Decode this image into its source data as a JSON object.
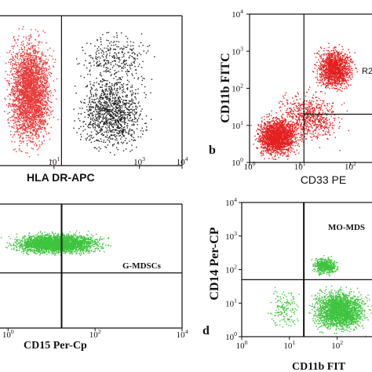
{
  "chart_data": [
    {
      "type": "scatter",
      "panel_letter": "",
      "xlabel": "HLA DR-APC",
      "ylabel": "",
      "x_scale": "log",
      "xlim": [
        0.5,
        10000
      ],
      "ylim": [
        0.5,
        10000
      ],
      "grid": false,
      "x_ticks": [
        {
          "value": 10,
          "base": "10",
          "exp": "1"
        },
        {
          "value": 1000,
          "base": "10",
          "exp": "3"
        },
        {
          "value": 10000,
          "base": "10",
          "exp": "4"
        }
      ],
      "y_ticks": [],
      "gate_lines": {
        "x": 15,
        "y": null
      },
      "gate_label": "",
      "series": [
        {
          "color": "#e83a3a",
          "clusters": [
            {
              "x_range": [
                0.55,
                13
              ],
              "y_range": [
                0.6,
                8000
              ],
              "n": 3000
            }
          ]
        },
        {
          "color": "#222222",
          "clusters": [
            {
              "x_range": [
                20,
                2500
              ],
              "y_range": [
                0.6,
                500
              ],
              "n": 1100
            },
            {
              "x_range": [
                20,
                4000
              ],
              "y_range": [
                50,
                8000
              ],
              "n": 300
            }
          ]
        }
      ]
    },
    {
      "type": "scatter",
      "panel_letter": "b",
      "xlabel": "CD33 PE",
      "ylabel": "CD11b FITC",
      "x_scale": "log",
      "xlim": [
        1,
        300
      ],
      "ylim": [
        1,
        10000
      ],
      "grid": false,
      "x_ticks": [
        {
          "value": 1,
          "base": "10",
          "exp": "0"
        },
        {
          "value": 10,
          "base": "10",
          "exp": "1"
        },
        {
          "value": 100,
          "base": "10",
          "exp": "2"
        }
      ],
      "y_ticks": [
        {
          "value": 1,
          "base": "10",
          "exp": "0"
        },
        {
          "value": 10,
          "base": "10",
          "exp": "1"
        },
        {
          "value": 100,
          "base": "10",
          "exp": "2"
        },
        {
          "value": 1000,
          "base": "10",
          "exp": "3"
        },
        {
          "value": 10000,
          "base": "10",
          "exp": "4"
        }
      ],
      "gate_lines": {
        "x": 12,
        "y": 20
      },
      "gate_label": "R2",
      "series": [
        {
          "color": "#e32020",
          "clusters": [
            {
              "x_range": [
                1,
                12
              ],
              "y_range": [
                1,
                25
              ],
              "n": 1800
            },
            {
              "x_range": [
                15,
                150
              ],
              "y_range": [
                60,
                2000
              ],
              "n": 1300
            },
            {
              "x_range": [
                2,
                100
              ],
              "y_range": [
                2,
                150
              ],
              "n": 700
            }
          ]
        }
      ]
    },
    {
      "type": "scatter",
      "panel_letter": "",
      "xlabel": "CD15 Per-Cp",
      "ylabel": "",
      "x_scale": "log",
      "xlim": [
        0.6,
        10000
      ],
      "ylim": [
        1,
        10000
      ],
      "grid": false,
      "x_ticks": [
        {
          "value": 1,
          "base": "10",
          "exp": "0"
        },
        {
          "value": 100,
          "base": "10",
          "exp": "2"
        },
        {
          "value": 10000,
          "base": "10",
          "exp": "4"
        }
      ],
      "y_ticks": [],
      "gate_lines": {
        "x": 17,
        "y": 60
      },
      "gate_label": "G-MDSCs",
      "series": [
        {
          "color": "#3ec43e",
          "clusters": [
            {
              "x_range": [
                0.6,
                300
              ],
              "y_range": [
                200,
                1500
              ],
              "n": 2800
            }
          ]
        }
      ]
    },
    {
      "type": "scatter",
      "panel_letter": "d",
      "xlabel": "CD11b FIT",
      "ylabel": "CD14 Per-CP",
      "x_scale": "log",
      "xlim": [
        1,
        600
      ],
      "ylim": [
        1,
        10000
      ],
      "grid": false,
      "x_ticks": [
        {
          "value": 1,
          "base": "10",
          "exp": "0"
        },
        {
          "value": 10,
          "base": "10",
          "exp": "1"
        },
        {
          "value": 100,
          "base": "10",
          "exp": "2"
        }
      ],
      "y_ticks": [
        {
          "value": 1,
          "base": "10",
          "exp": "0"
        },
        {
          "value": 10,
          "base": "10",
          "exp": "1"
        },
        {
          "value": 100,
          "base": "10",
          "exp": "2"
        },
        {
          "value": 1000,
          "base": "10",
          "exp": "3"
        },
        {
          "value": 10000,
          "base": "10",
          "exp": "4"
        }
      ],
      "gate_lines": {
        "x": 20,
        "y": 50
      },
      "gate_label": "MO-MDS",
      "series": [
        {
          "color": "#3ec43e",
          "clusters": [
            {
              "x_range": [
                20,
                600
              ],
              "y_range": [
                1,
                40
              ],
              "n": 2200
            },
            {
              "x_range": [
                25,
                120
              ],
              "y_range": [
                60,
                300
              ],
              "n": 500
            },
            {
              "x_range": [
                3,
                20
              ],
              "y_range": [
                1,
                50
              ],
              "n": 150
            }
          ]
        }
      ]
    }
  ]
}
